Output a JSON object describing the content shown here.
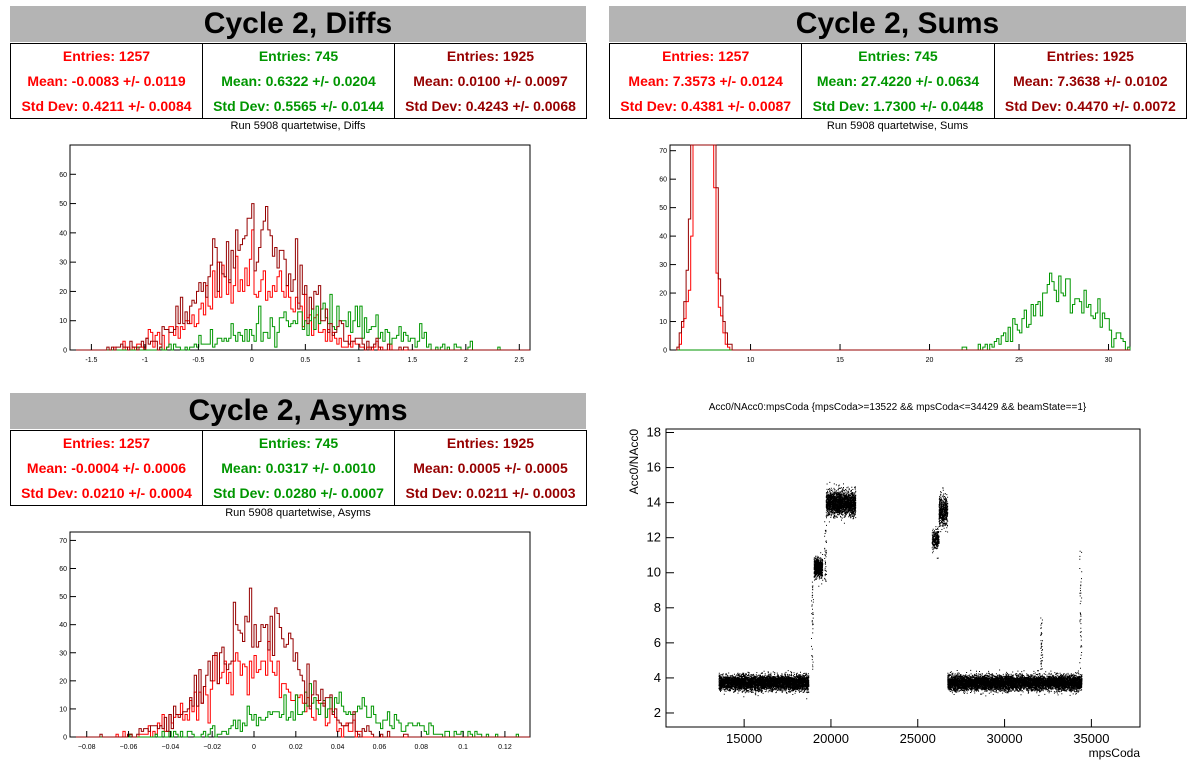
{
  "colors": {
    "red": "#ff0000",
    "green": "#009600",
    "darkred": "#960000",
    "header": "#b4b4b4"
  },
  "panels": {
    "diffs": {
      "title": "Cycle 2, Diffs",
      "subtitle": "Run 5908 quartetwise, Diffs",
      "stats": [
        {
          "entries": "Entries: 1257",
          "mean": "Mean: -0.0083 +/- 0.0119",
          "std": "Std Dev: 0.4211 +/- 0.0084",
          "color": "#ff0000"
        },
        {
          "entries": "Entries: 745",
          "mean": "Mean: 0.6322 +/- 0.0204",
          "std": "Std Dev: 0.5565 +/- 0.0144",
          "color": "#009600"
        },
        {
          "entries": "Entries: 1925",
          "mean": "Mean: 0.0100 +/- 0.0097",
          "std": "Std Dev: 0.4243 +/- 0.0068",
          "color": "#960000"
        }
      ]
    },
    "sums": {
      "title": "Cycle 2, Sums",
      "subtitle": "Run 5908 quartetwise, Sums",
      "stats": [
        {
          "entries": "Entries: 1257",
          "mean": "Mean: 7.3573 +/- 0.0124",
          "std": "Std Dev: 0.4381 +/- 0.0087",
          "color": "#ff0000"
        },
        {
          "entries": "Entries: 745",
          "mean": "Mean: 27.4220 +/- 0.0634",
          "std": "Std Dev: 1.7300 +/- 0.0448",
          "color": "#009600"
        },
        {
          "entries": "Entries: 1925",
          "mean": "Mean: 7.3638 +/- 0.0102",
          "std": "Std Dev: 0.4470 +/- 0.0072",
          "color": "#960000"
        }
      ]
    },
    "asyms": {
      "title": "Cycle 2, Asyms",
      "subtitle": "Run 5908 quartetwise, Asyms",
      "stats": [
        {
          "entries": "Entries: 1257",
          "mean": "Mean: -0.0004 +/- 0.0006",
          "std": "Std Dev: 0.0210 +/- 0.0004",
          "color": "#ff0000"
        },
        {
          "entries": "Entries: 745",
          "mean": "Mean: 0.0317 +/- 0.0010",
          "std": "Std Dev: 0.0280 +/- 0.0007",
          "color": "#009600"
        },
        {
          "entries": "Entries: 1925",
          "mean": "Mean: 0.0005 +/- 0.0005",
          "std": "Std Dev: 0.0211 +/- 0.0003",
          "color": "#960000"
        }
      ]
    },
    "scatter": {
      "title": "Acc0/NAcc0:mpsCoda {mpsCoda>=13522 && mpsCoda<=34429 && beamState==1}"
    }
  },
  "chart_data": [
    {
      "type": "histogram",
      "id": "diffs",
      "xlim": [
        -1.7,
        2.6
      ],
      "ylim": [
        0,
        70
      ],
      "xticks": [
        -1.5,
        -1,
        -0.5,
        0,
        0.5,
        1,
        1.5,
        2,
        2.5
      ],
      "yticks": [
        0,
        10,
        20,
        30,
        40,
        50,
        60
      ],
      "series": [
        {
          "color": "#ff0000",
          "mean": -0.0083,
          "std": 0.4211,
          "entries": 1257
        },
        {
          "color": "#009600",
          "mean": 0.6322,
          "std": 0.5565,
          "entries": 745
        },
        {
          "color": "#960000",
          "mean": 0.01,
          "std": 0.4243,
          "entries": 1925
        }
      ]
    },
    {
      "type": "histogram",
      "id": "sums",
      "xlim": [
        5.5,
        31.2
      ],
      "ylim": [
        0,
        72
      ],
      "xticks": [
        10,
        15,
        20,
        25,
        30
      ],
      "yticks": [
        0,
        10,
        20,
        30,
        40,
        50,
        60,
        70
      ],
      "series": [
        {
          "color": "#ff0000",
          "mean": 7.3573,
          "std": 0.4381,
          "entries": 1257
        },
        {
          "color": "#009600",
          "mean": 27.422,
          "std": 1.73,
          "entries": 745
        },
        {
          "color": "#960000",
          "mean": 7.3638,
          "std": 0.447,
          "entries": 1925
        }
      ]
    },
    {
      "type": "histogram",
      "id": "asyms",
      "xlim": [
        -0.088,
        0.132
      ],
      "ylim": [
        0,
        73
      ],
      "xticks": [
        -0.08,
        -0.06,
        -0.04,
        -0.02,
        0,
        0.02,
        0.04,
        0.06,
        0.08,
        0.1,
        0.12
      ],
      "xticklabels": [
        "−0.08",
        "−0.06",
        "−0.04",
        "−0.02",
        "0",
        "0.02",
        "0.04",
        "0.06",
        "0.08",
        "0.1",
        "0.12"
      ],
      "yticks": [
        0,
        10,
        20,
        30,
        40,
        50,
        60,
        70
      ],
      "series": [
        {
          "color": "#ff0000",
          "mean": -0.0004,
          "std": 0.021,
          "entries": 1257
        },
        {
          "color": "#009600",
          "mean": 0.0317,
          "std": 0.028,
          "entries": 745
        },
        {
          "color": "#960000",
          "mean": 0.0005,
          "std": 0.0211,
          "entries": 1925
        }
      ]
    },
    {
      "type": "scatter",
      "id": "scatter",
      "title": "Acc0/NAcc0:mpsCoda {mpsCoda>=13522 && mpsCoda<=34429 && beamState==1}",
      "xlabel": "mpsCoda",
      "ylabel": "Acc0/NAcc0",
      "xlim": [
        10500,
        37800
      ],
      "ylim": [
        1.2,
        18.2
      ],
      "xticks": [
        15000,
        20000,
        25000,
        30000,
        35000
      ],
      "yticks": [
        2,
        4,
        6,
        8,
        10,
        12,
        14,
        16,
        18
      ],
      "clusters": [
        {
          "x": [
            13522,
            18700
          ],
          "y": 3.75,
          "spread": 0.35,
          "n": 5500
        },
        {
          "x": [
            19000,
            19500
          ],
          "y": 10.3,
          "spread": 0.45,
          "n": 700
        },
        {
          "x": [
            19700,
            21400
          ],
          "y": 14.0,
          "spread": 0.55,
          "n": 2200
        },
        {
          "x": [
            25800,
            26200
          ],
          "y": 11.9,
          "spread": 0.45,
          "n": 300
        },
        {
          "x": [
            26200,
            26700
          ],
          "y": 13.5,
          "spread": 0.7,
          "n": 500
        },
        {
          "x": [
            26700,
            34429
          ],
          "y": 3.75,
          "spread": 0.35,
          "n": 8000
        }
      ]
    }
  ]
}
